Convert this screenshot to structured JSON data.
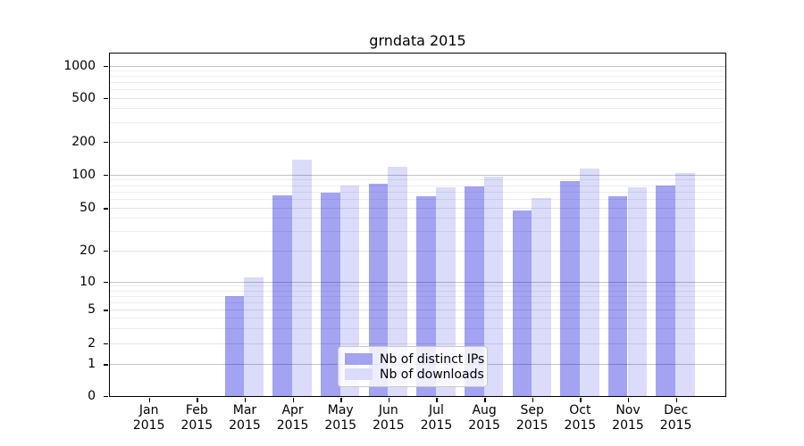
{
  "title": "grndata 2015",
  "year_label": "2015",
  "months": [
    "Jan",
    "Feb",
    "Mar",
    "Apr",
    "May",
    "Jun",
    "Jul",
    "Aug",
    "Sep",
    "Oct",
    "Nov",
    "Dec"
  ],
  "legend": {
    "items": [
      {
        "label": "Nb of distinct IPs",
        "color": "#a3a3f2"
      },
      {
        "label": "Nb of downloads",
        "color": "#dbdbfa"
      }
    ]
  },
  "colors": {
    "bar_distinct_ips": "rgba(0,0,220,0.36)",
    "bar_downloads": "rgba(0,0,220,0.14)",
    "grid_minor": "#ededed",
    "grid_mid": "#e3e3e3",
    "grid_major": "#c3c3c3",
    "axis": "#000000"
  },
  "chart_data": {
    "type": "bar",
    "title": "grndata 2015",
    "categories": [
      "Jan 2015",
      "Feb 2015",
      "Mar 2015",
      "Apr 2015",
      "May 2015",
      "Jun 2015",
      "Jul 2015",
      "Aug 2015",
      "Sep 2015",
      "Oct 2015",
      "Nov 2015",
      "Dec 2015"
    ],
    "series": [
      {
        "name": "Nb of distinct IPs",
        "values": [
          0,
          0,
          7,
          65,
          68,
          82,
          64,
          78,
          47,
          87,
          64,
          80
        ]
      },
      {
        "name": "Nb of downloads",
        "values": [
          0,
          0,
          11,
          135,
          80,
          118,
          76,
          96,
          61,
          113,
          77,
          103
        ]
      }
    ],
    "xlabel": "",
    "ylabel": "",
    "yscale": "symlog-like (log above 1, linear 0-1)",
    "y_ticks": [
      0,
      1,
      2,
      5,
      10,
      20,
      50,
      100,
      200,
      500,
      1000
    ],
    "y_minor_ticks": [
      3,
      4,
      6,
      7,
      8,
      9,
      30,
      40,
      60,
      70,
      80,
      90,
      300,
      400,
      600,
      700,
      800,
      900
    ],
    "ylim": [
      0,
      1300
    ],
    "grid": true,
    "legend_position": "lower center"
  }
}
